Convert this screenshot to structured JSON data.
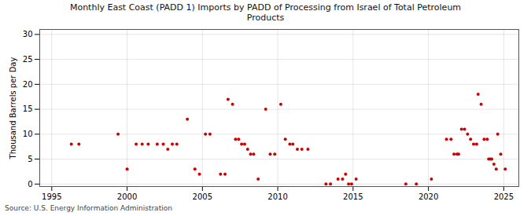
{
  "chart_data": {
    "type": "scatter",
    "title": "Monthly East Coast (PADD 1) Imports by PADD of Processing from Israel of Total Petroleum\nProducts",
    "ylabel": "Thousand Barrels per Day",
    "source": "Source: U.S. Energy Information Administration",
    "color": "#cc0000",
    "marker": "circle",
    "grid": true,
    "xlim": [
      1994.2,
      2026.0
    ],
    "ylim": [
      -0.5,
      31
    ],
    "xticks": [
      1995,
      2000,
      2005,
      2010,
      2015,
      2020,
      2025
    ],
    "yticks": [
      0,
      5,
      10,
      15,
      20,
      25,
      30
    ],
    "x": [
      1996.3,
      1996.8,
      1999.4,
      2000.0,
      2000.6,
      2001.0,
      2001.4,
      2002.0,
      2002.4,
      2002.7,
      2003.0,
      2003.3,
      2004.0,
      2004.5,
      2004.8,
      2005.2,
      2005.5,
      2006.2,
      2006.5,
      2006.7,
      2007.0,
      2007.2,
      2007.4,
      2007.6,
      2007.8,
      2008.0,
      2008.2,
      2008.4,
      2008.7,
      2009.2,
      2009.5,
      2009.8,
      2010.2,
      2010.5,
      2010.8,
      2011.0,
      2011.3,
      2011.6,
      2012.0,
      2013.2,
      2013.5,
      2014.0,
      2014.3,
      2014.5,
      2014.7,
      2014.9,
      2015.2,
      2018.5,
      2019.2,
      2020.2,
      2021.2,
      2021.5,
      2021.7,
      2021.9,
      2022.0,
      2022.2,
      2022.4,
      2022.6,
      2022.8,
      2023.0,
      2023.2,
      2023.3,
      2023.5,
      2023.7,
      2023.9,
      2024.0,
      2024.1,
      2024.2,
      2024.35,
      2024.5,
      2024.6,
      2024.8,
      2025.1
    ],
    "values": [
      8,
      8,
      10,
      3,
      8,
      8,
      8,
      8,
      8,
      7,
      8,
      8,
      13,
      3,
      2,
      10,
      10,
      2,
      2,
      17,
      16,
      9,
      9,
      8,
      8,
      7,
      6,
      6,
      1,
      15,
      6,
      6,
      16,
      9,
      8,
      8,
      7,
      7,
      7,
      0,
      0,
      1,
      1,
      2,
      0,
      0,
      1,
      0,
      0,
      1,
      9,
      9,
      6,
      6,
      6,
      11,
      11,
      10,
      9,
      8,
      8,
      18,
      16,
      9,
      9,
      5,
      5,
      5,
      4,
      3,
      10,
      6,
      3
    ]
  }
}
